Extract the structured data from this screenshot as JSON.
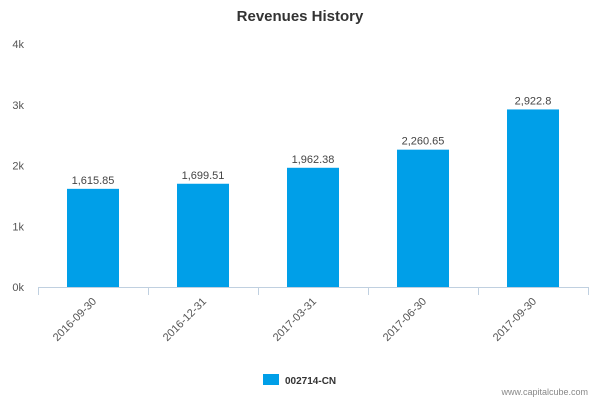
{
  "chart_data": {
    "type": "bar",
    "title": "Revenues History",
    "categories": [
      "2016-09-30",
      "2016-12-31",
      "2017-03-31",
      "2017-06-30",
      "2017-09-30"
    ],
    "series": [
      {
        "name": "002714-CN",
        "values": [
          1615.85,
          1699.51,
          1962.38,
          2260.65,
          2922.8
        ]
      }
    ],
    "data_labels": [
      "1,615.85",
      "1,699.51",
      "1,962.38",
      "2,260.65",
      "2,922.8"
    ],
    "y_ticks": [
      0,
      1000,
      2000,
      3000,
      4000
    ],
    "y_tick_labels": [
      "0k",
      "1k",
      "2k",
      "3k",
      "4k"
    ],
    "ylim": [
      0,
      4000
    ],
    "grid": false,
    "legend_position": "bottom-center",
    "bar_color": "#009fe8"
  },
  "credit": "www.capitalcube.com"
}
